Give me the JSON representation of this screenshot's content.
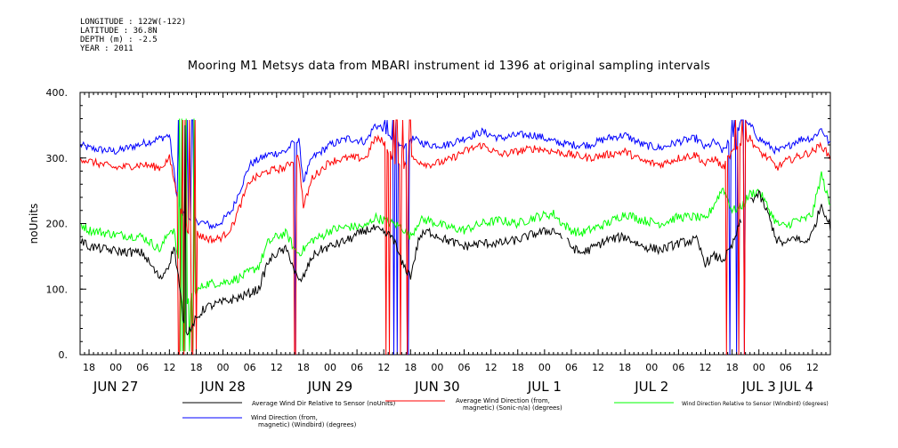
{
  "metadata": {
    "longitude": "LONGITUDE : 122W(-122)",
    "latitude": "LATITUDE : 36.8N",
    "depth": "DEPTH (m) : -2.5",
    "year": "YEAR : 2011"
  },
  "chart_data": {
    "type": "line",
    "title": "Mooring M1 Metsys data from MBARI instrument id 1396 at original sampling intervals",
    "ylabel": "noUnits",
    "xlabel": "",
    "ylim": [
      0,
      400
    ],
    "yticks": [
      0,
      100,
      200,
      300,
      400
    ],
    "ytick_labels": [
      "0.",
      "100.",
      "200.",
      "300.",
      "400."
    ],
    "x_unit": "hours since 2011-06-27 18:00 UTC",
    "xlim": [
      -2,
      166
    ],
    "xtick_labels_hours": [
      "18",
      "00",
      "06",
      "12",
      "18",
      "00",
      "06",
      "12",
      "18",
      "00",
      "06",
      "12",
      "18",
      "00",
      "06",
      "12",
      "18",
      "00",
      "06",
      "12",
      "18",
      "00",
      "06",
      "12",
      "18",
      "00",
      "06",
      "12",
      "18",
      "00",
      "06",
      "12"
    ],
    "day_labels": [
      {
        "label": "JUN 27",
        "hour": 6
      },
      {
        "label": "JUN 28",
        "hour": 30
      },
      {
        "label": "JUN 29",
        "hour": 54
      },
      {
        "label": "JUN 30",
        "hour": 78
      },
      {
        "label": "JUL  1",
        "hour": 102
      },
      {
        "label": "JUL  2",
        "hour": 126
      },
      {
        "label": "JUL  3",
        "hour": 150
      },
      {
        "label": "JUL  4",
        "hour": 174
      }
    ],
    "gaps": [
      [
        106,
        107
      ],
      [
        146,
        148
      ]
    ],
    "spike_windows": [
      [
        20,
        24
      ],
      [
        46,
        46.3
      ],
      [
        66,
        72
      ],
      [
        142.5,
        147
      ]
    ],
    "series": [
      {
        "name": "Average Wind Dir Relative to Sensor (noUnits)",
        "color": "#000000",
        "x": [
          -2,
          0,
          6,
          12,
          16,
          18,
          19,
          20,
          21,
          22,
          24,
          26,
          30,
          34,
          38,
          40,
          42,
          44,
          45,
          46,
          47,
          48,
          50,
          52,
          54,
          58,
          62,
          64,
          66,
          68,
          70,
          72,
          74,
          76,
          80,
          84,
          88,
          92,
          96,
          100,
          104,
          106,
          108,
          110,
          112,
          116,
          120,
          124,
          128,
          132,
          136,
          138,
          140,
          142,
          144,
          146,
          148,
          150,
          152,
          154,
          156,
          158,
          160,
          162,
          164,
          166
        ],
        "y": [
          175,
          165,
          158,
          155,
          115,
          140,
          165,
          120,
          60,
          35,
          55,
          72,
          80,
          88,
          100,
          140,
          155,
          160,
          150,
          128,
          110,
          118,
          150,
          160,
          165,
          175,
          190,
          192,
          185,
          180,
          140,
          120,
          180,
          188,
          175,
          165,
          170,
          170,
          175,
          185,
          190,
          180,
          165,
          155,
          160,
          175,
          180,
          165,
          160,
          170,
          175,
          140,
          150,
          145,
          165,
          205,
          235,
          245,
          215,
          175,
          168,
          180,
          170,
          185,
          230,
          195
        ]
      },
      {
        "name": "Average Wind Direction (from, magnetic) (Sonic-n/a) (degrees)",
        "color": "#ff0000",
        "x": [
          -2,
          0,
          6,
          12,
          16,
          18,
          20,
          22,
          24,
          26,
          28,
          30,
          32,
          36,
          40,
          44,
          46,
          47,
          48,
          50,
          54,
          58,
          62,
          64,
          66,
          68,
          70,
          72,
          74,
          76,
          80,
          84,
          88,
          92,
          96,
          100,
          104,
          108,
          112,
          116,
          120,
          124,
          128,
          132,
          136,
          138,
          140,
          142,
          144,
          146,
          148,
          150,
          152,
          154,
          156,
          158,
          160,
          162,
          164,
          166
        ],
        "y": [
          300,
          295,
          285,
          290,
          285,
          300,
          235,
          190,
          185,
          178,
          175,
          180,
          195,
          265,
          280,
          285,
          300,
          300,
          225,
          270,
          295,
          300,
          300,
          330,
          325,
          300,
          285,
          300,
          295,
          290,
          295,
          310,
          320,
          305,
          310,
          315,
          310,
          305,
          300,
          305,
          310,
          295,
          290,
          300,
          305,
          290,
          300,
          285,
          310,
          325,
          330,
          310,
          300,
          285,
          295,
          300,
          305,
          310,
          320,
          300
        ]
      },
      {
        "name": "Wind Direction Relative to Sensor (Windbird) (degrees)",
        "color": "#00ff00",
        "x": [
          -2,
          0,
          6,
          12,
          16,
          18,
          19,
          20,
          21,
          22,
          24,
          26,
          30,
          34,
          38,
          40,
          42,
          44,
          45,
          46,
          47,
          48,
          50,
          52,
          54,
          58,
          62,
          64,
          66,
          68,
          70,
          72,
          74,
          76,
          80,
          84,
          88,
          92,
          96,
          100,
          104,
          106,
          108,
          110,
          112,
          116,
          120,
          124,
          128,
          132,
          136,
          138,
          140,
          142,
          144,
          146,
          148,
          150,
          152,
          154,
          156,
          158,
          160,
          162,
          164,
          166
        ],
        "y": [
          200,
          190,
          183,
          180,
          160,
          190,
          190,
          140,
          100,
          80,
          95,
          108,
          110,
          118,
          135,
          170,
          180,
          185,
          175,
          160,
          155,
          160,
          175,
          180,
          190,
          195,
          195,
          210,
          205,
          200,
          195,
          180,
          205,
          205,
          195,
          190,
          200,
          205,
          200,
          210,
          215,
          200,
          190,
          185,
          190,
          200,
          215,
          205,
          200,
          210,
          210,
          205,
          230,
          255,
          220,
          225,
          245,
          250,
          225,
          200,
          195,
          205,
          205,
          215,
          275,
          225
        ]
      },
      {
        "name": "Wind Direction (from, magnetic) (Windbird) (degrees)",
        "color": "#0000ff",
        "x": [
          -2,
          0,
          6,
          12,
          16,
          18,
          20,
          22,
          24,
          26,
          28,
          30,
          32,
          36,
          40,
          44,
          46,
          47,
          48,
          50,
          54,
          58,
          62,
          64,
          66,
          68,
          70,
          72,
          74,
          76,
          80,
          84,
          88,
          92,
          96,
          100,
          104,
          108,
          112,
          116,
          120,
          124,
          128,
          132,
          136,
          138,
          140,
          142,
          144,
          146,
          148,
          150,
          152,
          154,
          156,
          158,
          160,
          162,
          164,
          166
        ],
        "y": [
          320,
          315,
          310,
          322,
          330,
          335,
          225,
          210,
          205,
          200,
          195,
          205,
          220,
          290,
          305,
          310,
          325,
          325,
          265,
          300,
          320,
          330,
          325,
          350,
          345,
          325,
          315,
          330,
          325,
          320,
          320,
          330,
          340,
          330,
          335,
          335,
          325,
          320,
          320,
          330,
          335,
          320,
          315,
          325,
          330,
          315,
          325,
          310,
          335,
          350,
          350,
          330,
          320,
          310,
          315,
          325,
          330,
          330,
          345,
          320
        ]
      }
    ],
    "legend": [
      {
        "line1": "Average Wind Dir Relative to Sensor (noUnits)",
        "line2": ""
      },
      {
        "line1": "Average Wind Direction (from,",
        "line2": "magnetic) (Sonic-n/a) (degrees)"
      },
      {
        "line1": "Wind Direction Relative to Sensor (Windbird) (degrees)",
        "line2": ""
      },
      {
        "line1": "Wind Direction (from,",
        "line2": "magnetic) (Windbird) (degrees)"
      }
    ],
    "legend_placement": "bottom",
    "grid": false
  }
}
